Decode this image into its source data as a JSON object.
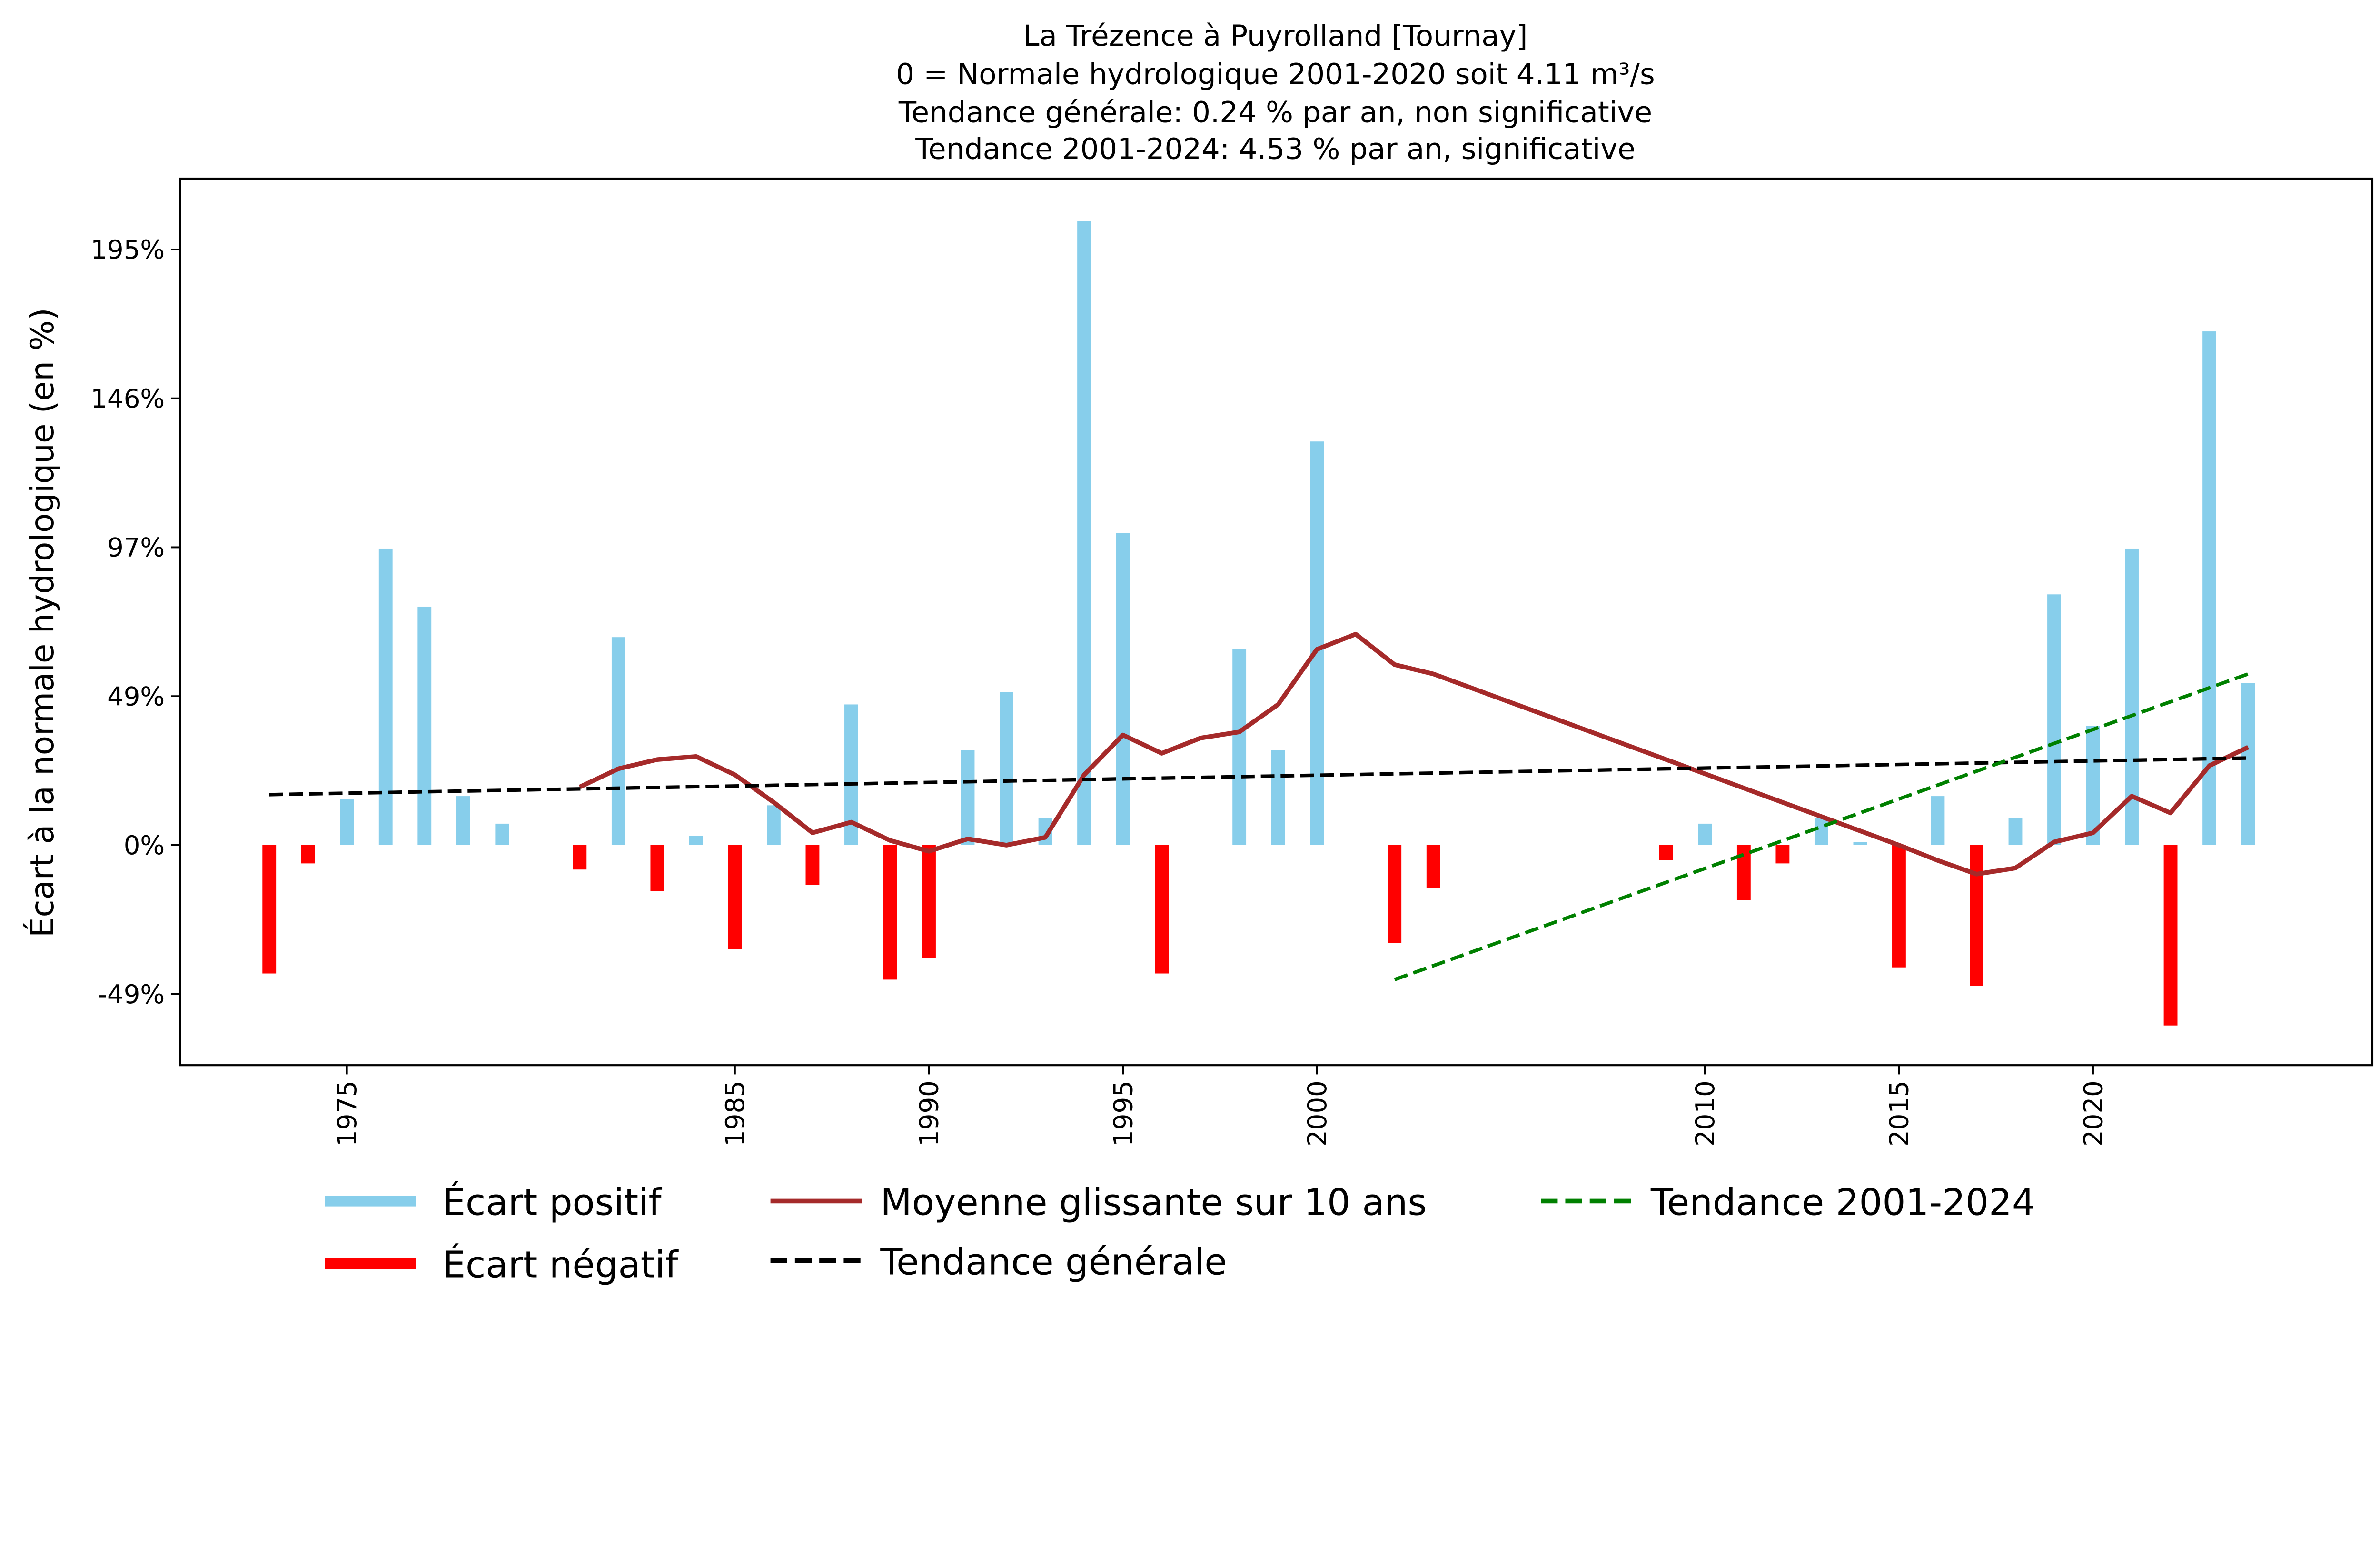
{
  "chart_data": {
    "type": "bar",
    "title": [
      "La Trézence à Puyrolland [Tournay]",
      "0 = Normale hydrologique 2001-2020 soit 4.11 m³/s",
      "Tendance générale: 0.24 % par an, non significative",
      "Tendance 2001-2024: 4.53 % par an, significative"
    ],
    "xlabel": "",
    "ylabel": "Écart à la normale hydrologique (en %)",
    "xlim": [
      1970.7,
      2027.2
    ],
    "ylim": [
      -72,
      218
    ],
    "yticks": [
      -48.7,
      0,
      48.7,
      97.4,
      146.1,
      194.8
    ],
    "ytick_labels": [
      "-49%",
      "0%",
      "49%",
      "97%",
      "146%",
      "195%"
    ],
    "xticks": [
      1975,
      1985,
      1990,
      1995,
      2000,
      2010,
      2015,
      2020
    ],
    "xtick_labels": [
      "1975",
      "1985",
      "1990",
      "1995",
      "2000",
      "2010",
      "2015",
      "2020"
    ],
    "bars": {
      "years": [
        1973,
        1974,
        1975,
        1976,
        1977,
        1978,
        1979,
        1981,
        1982,
        1983,
        1984,
        1985,
        1986,
        1987,
        1988,
        1989,
        1990,
        1991,
        1992,
        1993,
        1994,
        1995,
        1996,
        1998,
        1999,
        2000,
        2002,
        2003,
        2009,
        2010,
        2011,
        2012,
        2013,
        2014,
        2015,
        2016,
        2017,
        2018,
        2019,
        2020,
        2021,
        2022,
        2023,
        2024
      ],
      "values": [
        -42,
        -6,
        15,
        97,
        78,
        16,
        7,
        -8,
        68,
        -15,
        3,
        -34,
        13,
        -13,
        46,
        -44,
        -37,
        31,
        50,
        9,
        204,
        102,
        -42,
        64,
        31,
        132,
        -32,
        -14,
        -5,
        7,
        -18,
        -6,
        9,
        1,
        -40,
        16,
        -46,
        9,
        82,
        39,
        97,
        -59,
        168,
        53
      ]
    },
    "series": [
      {
        "name": "Moyenne glissante sur 10 ans",
        "x": [
          1981,
          1982,
          1983,
          1984,
          1985,
          1986,
          1987,
          1988,
          1989,
          1990,
          1991,
          1992,
          1993,
          1994,
          1995,
          1996,
          1997,
          1998,
          1999,
          2000,
          2001,
          2002,
          2003,
          2015,
          2016,
          2017,
          2018,
          2019,
          2020,
          2021,
          2022,
          2023,
          2024
        ],
        "y": [
          19,
          25,
          28,
          29,
          23,
          14,
          4,
          7.5,
          1.5,
          -2,
          2,
          0,
          2.5,
          23,
          36,
          30,
          35,
          37,
          46,
          64,
          69,
          59,
          56,
          0,
          -5,
          -9.5,
          -7.5,
          1,
          4,
          16,
          10.5,
          26,
          32
        ]
      },
      {
        "name": "Tendance générale",
        "x": [
          1973,
          2024
        ],
        "y": [
          16.5,
          28.5
        ]
      },
      {
        "name": "Tendance 2001-2024",
        "x": [
          2002,
          2024
        ],
        "y": [
          -44,
          56
        ]
      }
    ],
    "legend": {
      "placement": "bottom",
      "entries": [
        "Écart positif",
        "Écart négatif",
        "Moyenne glissante sur 10 ans",
        "Tendance générale",
        "Tendance 2001-2024"
      ]
    },
    "colors": {
      "positive": "#87ceeb",
      "negative": "#ff0000",
      "moving_avg": "#a52a2a",
      "trend_general": "#000000",
      "trend_recent": "#008000"
    }
  }
}
